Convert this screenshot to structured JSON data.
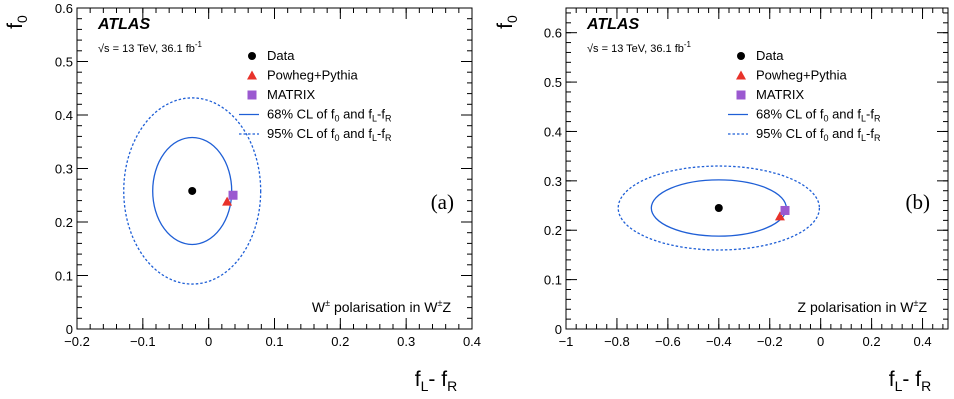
{
  "chart_data": [
    {
      "type": "scatter",
      "panel_label": "(a)",
      "experiment": "ATLAS",
      "energy_text": "= 13 TeV, 36.1 fb",
      "lumi_exp": "-1",
      "annotation": "polarisation in W",
      "ann_main": "W",
      "ann_sup1": "±",
      "ann_sup2": "±",
      "ann_tail": "Z",
      "xlabel": "f_L - f_R",
      "ylabel": "f_0",
      "xlim": [
        -0.2,
        0.4
      ],
      "ylim": [
        0,
        0.6
      ],
      "xticks": [
        "−0.2",
        "−0.1",
        "0",
        "0.1",
        "0.2",
        "0.3",
        "0.4"
      ],
      "xtick_values": [
        -0.2,
        -0.1,
        0,
        0.1,
        0.2,
        0.3,
        0.4
      ],
      "yticks": [
        "0",
        "0.1",
        "0.2",
        "0.3",
        "0.4",
        "0.5",
        "0.6"
      ],
      "ytick_values": [
        0,
        0.1,
        0.2,
        0.3,
        0.4,
        0.5,
        0.6
      ],
      "data_point": {
        "x": -0.025,
        "y": 0.258
      },
      "powheg_point": {
        "x": 0.028,
        "y": 0.238
      },
      "matrix_point": {
        "x": 0.037,
        "y": 0.25
      },
      "ellipse_68": {
        "cx": -0.025,
        "cy": 0.258,
        "rx": 0.06,
        "ry": 0.1
      },
      "ellipse_95": {
        "cx": -0.025,
        "cy": 0.258,
        "rx": 0.104,
        "ry": 0.174
      },
      "legend": [
        {
          "label": "Data"
        },
        {
          "label": "Powheg+Pythia"
        },
        {
          "label": "MATRIX"
        },
        {
          "label": "68% CL of f",
          "sub1": "0",
          "mid": " and f",
          "sub2": "L",
          "dash": "-f",
          "sub3": "R"
        },
        {
          "label": "95% CL of f",
          "sub1": "0",
          "mid": " and f",
          "sub2": "L",
          "dash": "-f",
          "sub3": "R"
        }
      ]
    },
    {
      "type": "scatter",
      "panel_label": "(b)",
      "experiment": "ATLAS",
      "energy_text": "= 13 TeV, 36.1 fb",
      "lumi_exp": "-1",
      "ann_main": "Z polarisation in W",
      "ann_sup1": "±",
      "ann_tail": "Z",
      "xlabel": "f_L - f_R",
      "ylabel": "f_0",
      "xlim": [
        -1,
        0.5
      ],
      "ylim": [
        0,
        0.65
      ],
      "xticks": [
        "−1",
        "−0.8",
        "−0.6",
        "−0.4",
        "−0.2",
        "0",
        "0.2",
        "0.4"
      ],
      "xtick_values": [
        -1,
        -0.8,
        -0.6,
        -0.4,
        -0.2,
        0,
        0.2,
        0.4
      ],
      "yticks": [
        "0",
        "0.1",
        "0.2",
        "0.3",
        "0.4",
        "0.5",
        "0.6"
      ],
      "ytick_values": [
        0,
        0.1,
        0.2,
        0.3,
        0.4,
        0.5,
        0.6
      ],
      "data_point": {
        "x": -0.4,
        "y": 0.245
      },
      "powheg_point": {
        "x": -0.16,
        "y": 0.228
      },
      "matrix_point": {
        "x": -0.14,
        "y": 0.24
      },
      "ellipse_68": {
        "cx": -0.4,
        "cy": 0.245,
        "rx": 0.265,
        "ry": 0.057
      },
      "ellipse_95": {
        "cx": -0.4,
        "cy": 0.245,
        "rx": 0.395,
        "ry": 0.085
      },
      "legend": [
        {
          "label": "Data"
        },
        {
          "label": "Powheg+Pythia"
        },
        {
          "label": "MATRIX"
        },
        {
          "label": "68% CL of f",
          "sub1": "0",
          "mid": " and f",
          "sub2": "L",
          "dash": "-f",
          "sub3": "R"
        },
        {
          "label": "95% CL of f",
          "sub1": "0",
          "mid": " and f",
          "sub2": "L",
          "dash": "-f",
          "sub3": "R"
        }
      ]
    }
  ],
  "colors": {
    "ellipse": "#1f5fd6",
    "powheg": "#e8322a",
    "matrix": "#9b59d0",
    "data": "#000000"
  }
}
